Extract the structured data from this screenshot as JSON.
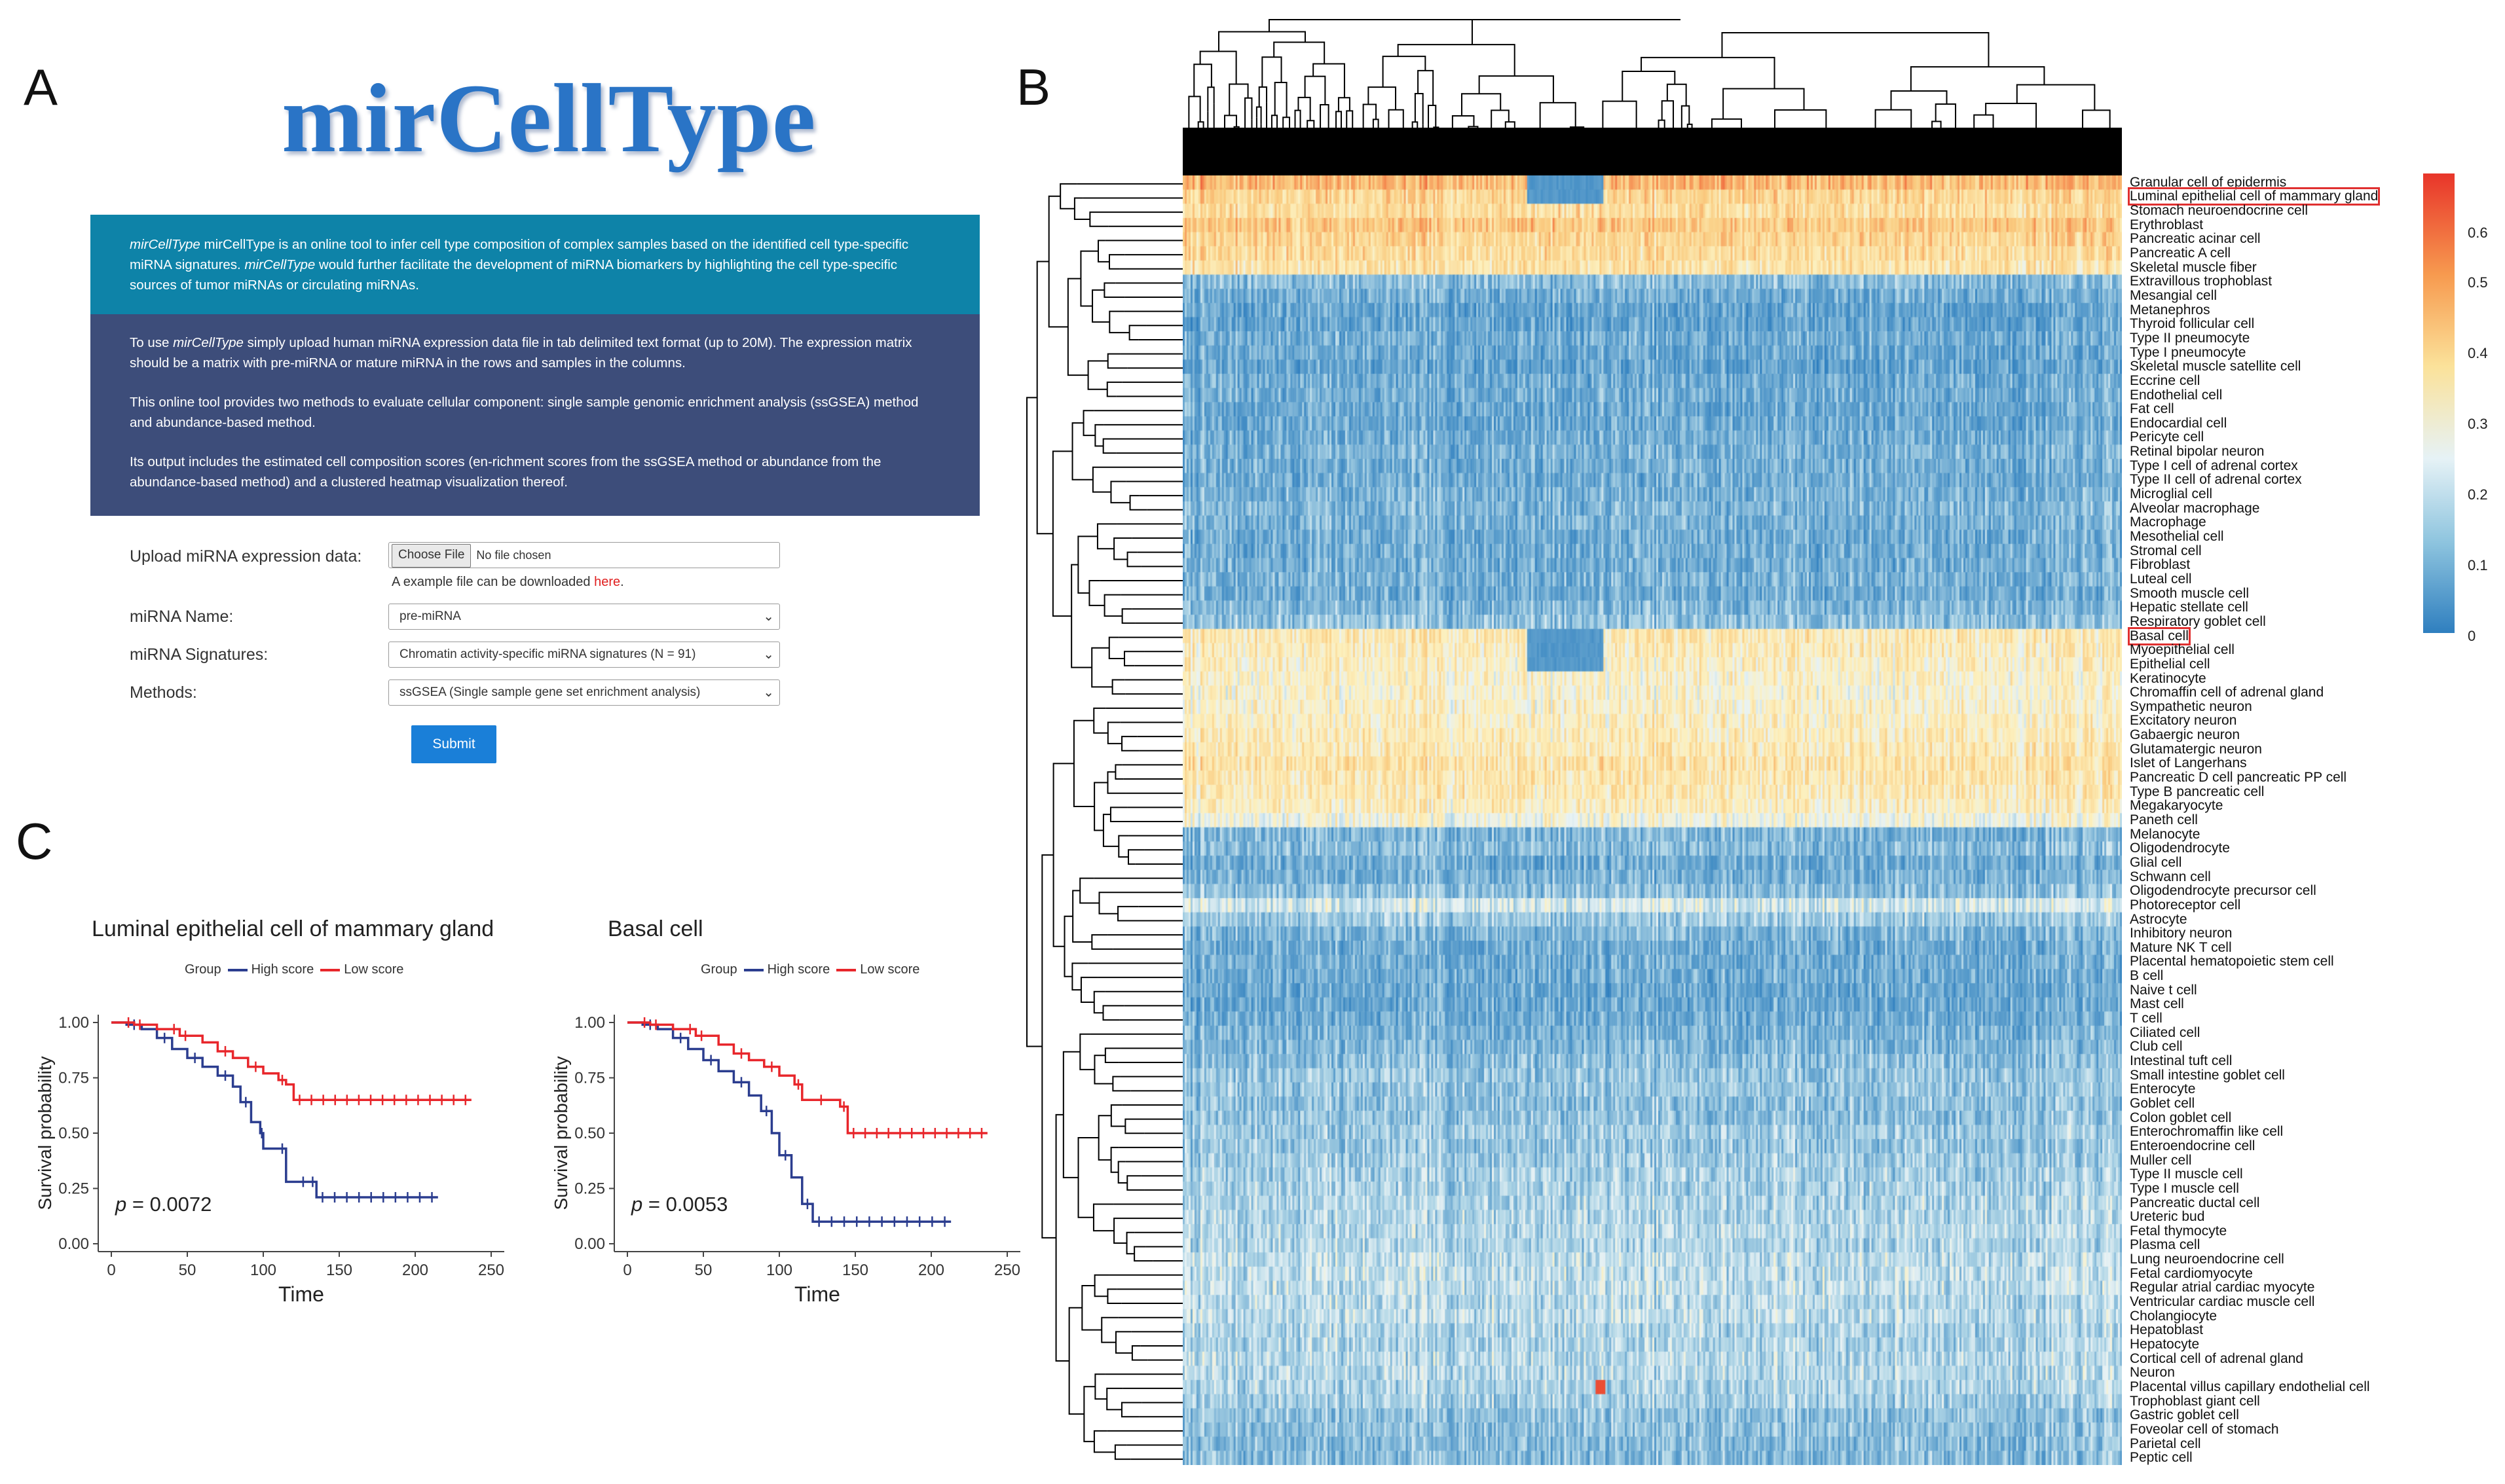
{
  "panel_letters": {
    "a": "A",
    "b": "B",
    "c": "C"
  },
  "app": {
    "title": "mirCellType",
    "intro_p1_em1": "mirCellType",
    "intro_p1_a": " mirCellType is an online tool to infer cell type composition of complex samples based on the identified cell type-specific miRNA signatures. ",
    "intro_p1_em2": "mirCellType",
    "intro_p1_b": " would further facilitate the development of miRNA biomarkers by highlighting the cell type-specific sources of tumor miRNAs or circulating miRNAs.",
    "p2_a": "To use ",
    "p2_em": "mirCellType",
    "p2_b": " simply upload human miRNA expression data file in tab delimited text format (up to 20M). The expression matrix should be a matrix with pre-miRNA or mature miRNA in the rows and samples in the columns.",
    "p3": "This online tool provides two methods to evaluate cellular component: single sample genomic enrichment analysis (ssGSEA) method and abundance-based method.",
    "p4": "Its output includes the estimated cell composition scores (en-richment scores from the ssGSEA method or abundance from the abundance-based method) and a clustered heatmap visualization thereof.",
    "upload_label": "Upload miRNA expression data:",
    "choose_file": "Choose File",
    "no_file": "No file chosen",
    "hint_text": "A example file can be downloaded ",
    "hint_link": "here",
    "hint_end": ".",
    "mirna_name_label": "miRNA Name:",
    "mirna_name_value": "pre-miRNA",
    "signatures_label": "miRNA Signatures:",
    "signatures_value": "Chromatin activity-specific miRNA signatures (N = 91)",
    "methods_label": "Methods:",
    "methods_value": "ssGSEA (Single sample gene set enrichment analysis)",
    "submit": "Submit",
    "colors": {
      "teal": "#0e83a8",
      "navy": "#3d4d7a",
      "title": "#2a74c6",
      "button": "#1a7fd8"
    }
  },
  "km_plots": [
    {
      "title": "Luminal epithelial cell of mammary gland",
      "legend_group": "Group",
      "legend_high": "High score",
      "legend_low": "Low score",
      "p_label": "p",
      "p_value": " = 0.0072",
      "high_curve": [
        [
          0,
          1.0
        ],
        [
          10,
          0.99
        ],
        [
          20,
          0.97
        ],
        [
          30,
          0.93
        ],
        [
          40,
          0.88
        ],
        [
          50,
          0.84
        ],
        [
          60,
          0.8
        ],
        [
          70,
          0.76
        ],
        [
          80,
          0.71
        ],
        [
          85,
          0.64
        ],
        [
          92,
          0.55
        ],
        [
          98,
          0.5
        ],
        [
          100,
          0.43
        ],
        [
          110,
          0.43
        ],
        [
          115,
          0.28
        ],
        [
          130,
          0.28
        ],
        [
          135,
          0.21
        ],
        [
          215,
          0.21
        ]
      ],
      "low_curve": [
        [
          0,
          1.0
        ],
        [
          15,
          0.99
        ],
        [
          30,
          0.97
        ],
        [
          45,
          0.94
        ],
        [
          60,
          0.91
        ],
        [
          70,
          0.87
        ],
        [
          80,
          0.84
        ],
        [
          90,
          0.8
        ],
        [
          100,
          0.77
        ],
        [
          110,
          0.74
        ],
        [
          115,
          0.72
        ],
        [
          120,
          0.65
        ],
        [
          237,
          0.65
        ]
      ]
    },
    {
      "title": "Basal cell",
      "legend_group": "Group",
      "legend_high": "High score",
      "legend_low": "Low score",
      "p_label": "p",
      "p_value": " = 0.0053",
      "high_curve": [
        [
          0,
          1.0
        ],
        [
          10,
          0.99
        ],
        [
          20,
          0.97
        ],
        [
          30,
          0.93
        ],
        [
          40,
          0.88
        ],
        [
          50,
          0.83
        ],
        [
          60,
          0.78
        ],
        [
          70,
          0.73
        ],
        [
          80,
          0.67
        ],
        [
          88,
          0.6
        ],
        [
          95,
          0.5
        ],
        [
          100,
          0.4
        ],
        [
          108,
          0.3
        ],
        [
          115,
          0.18
        ],
        [
          122,
          0.1
        ],
        [
          213,
          0.1
        ]
      ],
      "low_curve": [
        [
          0,
          1.0
        ],
        [
          15,
          0.99
        ],
        [
          30,
          0.97
        ],
        [
          45,
          0.94
        ],
        [
          60,
          0.9
        ],
        [
          70,
          0.86
        ],
        [
          80,
          0.83
        ],
        [
          90,
          0.8
        ],
        [
          100,
          0.76
        ],
        [
          110,
          0.72
        ],
        [
          115,
          0.65
        ],
        [
          140,
          0.62
        ],
        [
          145,
          0.5
        ],
        [
          237,
          0.5
        ]
      ]
    }
  ],
  "km_axes": {
    "ylabel": "Survival probability",
    "xlabel": "Time",
    "yticks": [
      "0.00",
      "0.25",
      "0.50",
      "0.75",
      "1.00"
    ],
    "xticks": [
      "0",
      "50",
      "100",
      "150",
      "200",
      "250"
    ],
    "high_color": "#2b3d8f",
    "low_color": "#e8262b"
  },
  "heatmap": {
    "colorbar_ticks": [
      "0.6",
      "0.5",
      "0.4",
      "0.3",
      "0.2",
      "0.1",
      "0"
    ],
    "boxed_labels": [
      "Luminal epithelial cell of mammary gland",
      "Basal cell"
    ],
    "rows": [
      "Granular cell of epidermis",
      "Luminal epithelial cell of mammary gland",
      "Stomach neuroendocrine cell",
      "Erythroblast",
      "Pancreatic acinar cell",
      "Pancreatic A cell",
      "Skeletal muscle fiber",
      "Extravillous trophoblast",
      "Mesangial cell",
      "Metanephros",
      "Thyroid follicular cell",
      "Type II pneumocyte",
      "Type I pneumocyte",
      "Skeletal muscle satellite cell",
      "Eccrine cell",
      "Endothelial cell",
      "Fat cell",
      "Endocardial cell",
      "Pericyte cell",
      "Retinal bipolar neuron",
      "Type I cell of adrenal cortex",
      "Type II cell of adrenal cortex",
      "Microglial cell",
      "Alveolar macrophage",
      "Macrophage",
      "Mesothelial cell",
      "Stromal cell",
      "Fibroblast",
      "Luteal cell",
      "Smooth muscle cell",
      "Hepatic stellate cell",
      "Respiratory goblet cell",
      "Basal cell",
      "Myoepithelial cell",
      "Epithelial cell",
      "Keratinocyte",
      "Chromaffin cell of adrenal gland",
      "Sympathetic neuron",
      "Excitatory neuron",
      "Gabaergic neuron",
      "Glutamatergic neuron",
      "Islet of Langerhans",
      "Pancreatic D cell  pancreatic PP cell",
      "Type B pancreatic cell",
      "Megakaryocyte",
      "Paneth cell",
      "Melanocyte",
      "Oligodendrocyte",
      "Glial cell",
      "Schwann cell",
      "Oligodendrocyte precursor cell",
      "Photoreceptor cell",
      "Astrocyte",
      "Inhibitory neuron",
      "Mature NK T cell",
      "Placental hematopoietic stem cell",
      "B cell",
      "Naive t cell",
      "Mast cell",
      "T cell",
      "Ciliated cell",
      "Club cell",
      "Intestinal tuft cell",
      "Small intestine goblet cell",
      "Enterocyte",
      "Goblet cell",
      "Colon goblet cell",
      "Enterochromaffin like cell",
      "Enteroendocrine cell",
      "Muller cell",
      "Type II muscle cell",
      "Type I muscle cell",
      "Pancreatic ductal cell",
      "Ureteric bud",
      "Fetal thymocyte",
      "Plasma cell",
      "Lung neuroendocrine cell",
      "Fetal cardiomyocyte",
      "Regular atrial cardiac myocyte",
      "Ventricular cardiac muscle cell",
      "Cholangiocyte",
      "Hepatoblast",
      "Hepatocyte",
      "Cortical cell of adrenal gland",
      "Neuron",
      "Placental villus capillary endothelial cell",
      "Trophoblast giant cell",
      "Gastric goblet cell",
      "Foveolar cell of stomach",
      "Parietal cell",
      "Peptic cell"
    ],
    "row_levels": [
      0.48,
      0.42,
      0.4,
      0.45,
      0.42,
      0.4,
      0.38,
      0.15,
      0.12,
      0.1,
      0.1,
      0.12,
      0.11,
      0.1,
      0.12,
      0.12,
      0.11,
      0.11,
      0.12,
      0.13,
      0.12,
      0.12,
      0.13,
      0.14,
      0.13,
      0.12,
      0.12,
      0.12,
      0.13,
      0.12,
      0.14,
      0.16,
      0.36,
      0.35,
      0.34,
      0.33,
      0.32,
      0.33,
      0.34,
      0.35,
      0.36,
      0.38,
      0.37,
      0.36,
      0.34,
      0.3,
      0.14,
      0.15,
      0.12,
      0.13,
      0.16,
      0.25,
      0.18,
      0.14,
      0.12,
      0.12,
      0.12,
      0.11,
      0.11,
      0.12,
      0.13,
      0.14,
      0.16,
      0.17,
      0.17,
      0.16,
      0.16,
      0.18,
      0.17,
      0.18,
      0.19,
      0.19,
      0.2,
      0.2,
      0.21,
      0.2,
      0.22,
      0.22,
      0.22,
      0.21,
      0.22,
      0.2,
      0.2,
      0.21,
      0.21,
      0.2,
      0.19,
      0.16,
      0.16,
      0.15,
      0.15
    ]
  }
}
